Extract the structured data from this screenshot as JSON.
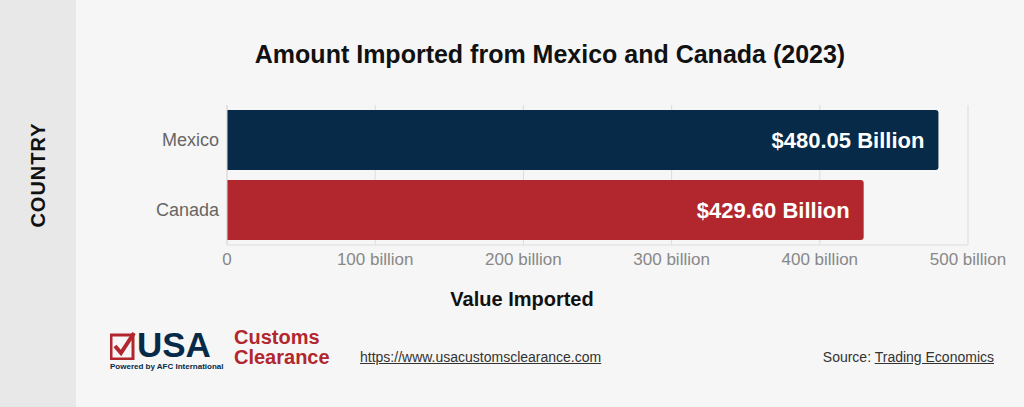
{
  "chart_data": {
    "type": "bar",
    "orientation": "horizontal",
    "title": "Amount Imported from Mexico and Canada (2023)",
    "categories": [
      "Mexico",
      "Canada"
    ],
    "values": [
      480.05,
      429.6
    ],
    "value_labels": [
      "$480.05 Billion",
      "$429.60 Billion"
    ],
    "colors": [
      "#062a47",
      "#b2262d"
    ],
    "xlabel": "Value Imported",
    "ylabel": "COUNTRY",
    "xlim": [
      0,
      500
    ],
    "xticks": [
      0,
      {
        "value": 100,
        "label": "100 billion"
      },
      {
        "value": 200,
        "label": "200 billion"
      },
      {
        "value": 300,
        "label": "300 billion"
      },
      {
        "value": 400,
        "label": "400 billion"
      },
      {
        "value": 500,
        "label": "500 billion"
      }
    ],
    "grid": true,
    "data_labels": true,
    "annotations": [
      "USA",
      "Customs",
      "Clearance",
      "Powered by AFC International",
      "https://www.usacustomsclearance.com",
      "Source:",
      "Trading Economics"
    ]
  }
}
